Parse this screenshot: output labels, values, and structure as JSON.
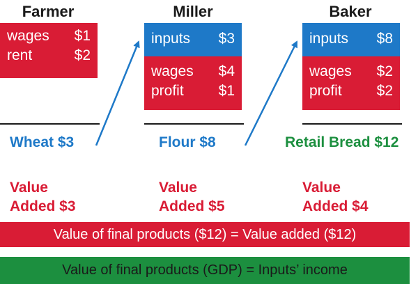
{
  "colors": {
    "red": "#d91c35",
    "blue": "#1e79c8",
    "green": "#1c8f3f",
    "text": "#1a1a1a"
  },
  "producers": [
    {
      "name": "Farmer",
      "rows": [
        {
          "label": "wages",
          "amount": "$1"
        },
        {
          "label": "rent",
          "amount": "$2"
        }
      ],
      "product": "Wheat $3",
      "value_added_label": "Value",
      "value_added_amount": "Added  $3"
    },
    {
      "name": "Miller",
      "inputs": {
        "label": "inputs",
        "amount": "$3"
      },
      "rows": [
        {
          "label": "wages",
          "amount": "$4"
        },
        {
          "label": "profit",
          "amount": "$1"
        }
      ],
      "product": "Flour  $8",
      "value_added_label": "Value",
      "value_added_amount": "Added  $5"
    },
    {
      "name": "Baker",
      "inputs": {
        "label": "inputs",
        "amount": "$8"
      },
      "rows": [
        {
          "label": "wages",
          "amount": "$2"
        },
        {
          "label": "profit",
          "amount": "$2"
        }
      ],
      "product": "Retail Bread $12",
      "value_added_label": "Value",
      "value_added_amount": "Added $4"
    }
  ],
  "banners": {
    "value_added": "Value of final products ($12) = Value added ($12)",
    "gdp": "Value of final products (GDP) = Inputs’ income"
  }
}
